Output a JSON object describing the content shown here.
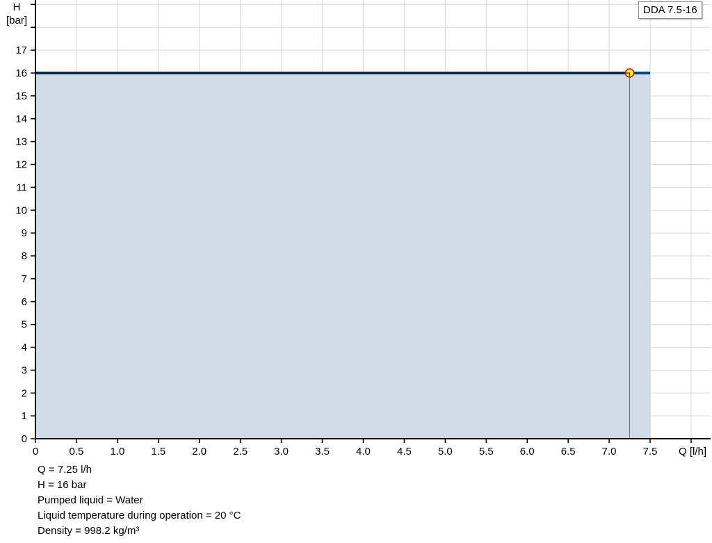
{
  "chart_data": {
    "type": "line",
    "xlabel": "Q [l/h]",
    "ylabel_line1": "H",
    "ylabel_line2": "[bar]",
    "xlim": [
      0,
      8.24
    ],
    "ylim": [
      0,
      19.2
    ],
    "xticks": [
      "0",
      "0.5",
      "1.0",
      "1.5",
      "2.0",
      "2.5",
      "3.0",
      "3.5",
      "4.0",
      "4.5",
      "5.0",
      "5.5",
      "6.0",
      "6.5",
      "7.0",
      "7.5"
    ],
    "xtick_values": [
      0,
      0.5,
      1,
      1.5,
      2,
      2.5,
      3,
      3.5,
      4,
      4.5,
      5,
      5.5,
      6,
      6.5,
      7,
      7.5
    ],
    "yticks": [
      "0",
      "1",
      "2",
      "3",
      "4",
      "5",
      "6",
      "7",
      "8",
      "9",
      "10",
      "11",
      "12",
      "13",
      "14",
      "15",
      "16",
      "17"
    ],
    "grid": true,
    "legend_placement": "top-right",
    "series": [
      {
        "name": "DDA 7.5-16",
        "x": [
          0,
          7.5
        ],
        "y": [
          16,
          16
        ],
        "color": "#00457c",
        "fill": "#d0dce8"
      }
    ],
    "operating_point": {
      "x": 7.25,
      "y": 16,
      "fill": "#ffff00",
      "stroke": "#e00000"
    }
  },
  "info": [
    "Q = 7.25 l/h",
    "H = 16 bar",
    "Pumped liquid = Water",
    "Liquid temperature during operation = 20 °C",
    "Density = 998.2 kg/m³"
  ]
}
